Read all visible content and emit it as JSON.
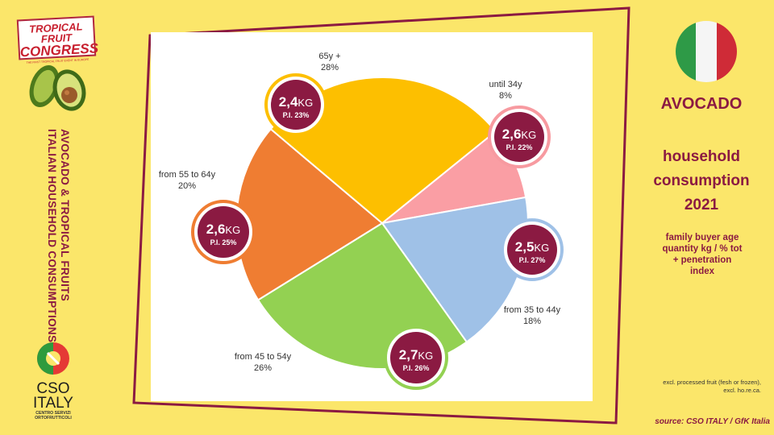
{
  "logo_tfc": {
    "line1": "TROPICAL FRUIT",
    "line2": "CONGRESS",
    "tagline": "THE FIRST TROPICAL FRUIT EVENT IN EUROPE"
  },
  "side_title": {
    "line1": "AVOCADO & TROPICAL FRUITS",
    "line2": "ITALIAN HOUSEHOLD  CONSUMPTIONS"
  },
  "cso_logo": {
    "name1": "CSO",
    "name2": "ITALY",
    "sub1": "CENTRO SERVIZI",
    "sub2": "ORTOFRUTTICOLI"
  },
  "right": {
    "product": "AVOCADO",
    "title_l1": "household",
    "title_l2": "consumption",
    "title_l3": "2021",
    "desc_l1": "family buyer age",
    "desc_l2": "quantity kg / % tot",
    "desc_l3": "+ penetration",
    "desc_l4": "index",
    "note": "excl. processed fruit (fesh or frozen), excl. ho.re.ca."
  },
  "source": "source: CSO ITALY / GfK Italia",
  "colors": {
    "accent": "#8b1a42",
    "background": "#fbe66a",
    "bubble": "#8b1a42"
  },
  "chart_data": {
    "type": "pie",
    "slices": [
      {
        "label": "until 34y",
        "pct_text": "8%",
        "value": 8,
        "color": "#fa9ea4",
        "kg": "2,6",
        "kg_unit": "KG",
        "pi": "P.I. 22%",
        "ring": "#f79aa0"
      },
      {
        "label": "from 35 to 44y",
        "pct_text": "18%",
        "value": 18,
        "color": "#9fc1e7",
        "kg": "2,5",
        "kg_unit": "KG",
        "pi": "P.I. 27%",
        "ring": "#9fc1e7"
      },
      {
        "label": "from 45 to 54y",
        "pct_text": "26%",
        "value": 26,
        "color": "#93d152",
        "kg": "2,7",
        "kg_unit": "KG",
        "pi": "P.I. 26%",
        "ring": "#93d152"
      },
      {
        "label": "from 55 to 64y",
        "pct_text": "20%",
        "value": 20,
        "color": "#ef7d32",
        "kg": "2,6",
        "kg_unit": "KG",
        "pi": "P.I. 25%",
        "ring": "#ef7d32"
      },
      {
        "label": "65y +",
        "pct_text": "28%",
        "value": 28,
        "color": "#fdbf00",
        "kg": "2,4",
        "kg_unit": "KG",
        "pi": "P.I. 23%",
        "ring": "#fdbf00"
      }
    ]
  }
}
